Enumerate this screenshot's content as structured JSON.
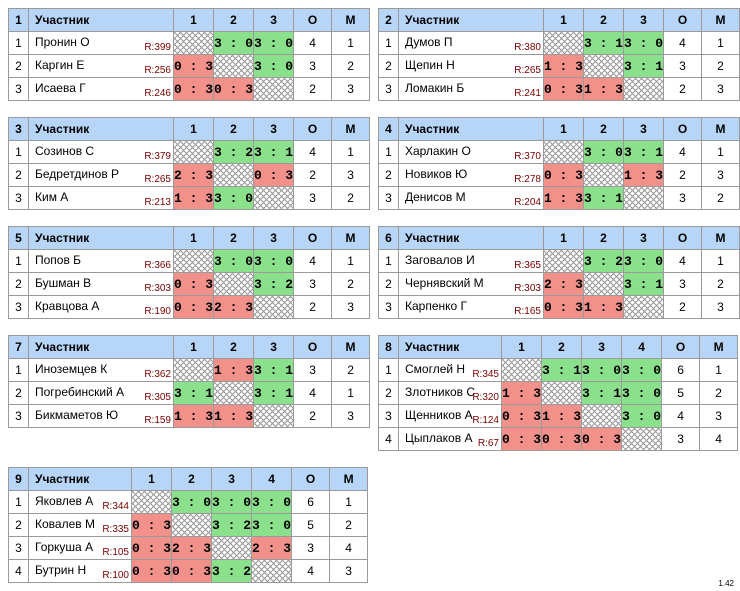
{
  "header_label": "Участник",
  "col_points": "О",
  "col_place": "М",
  "version": "1.42",
  "groups": [
    {
      "num": "1",
      "players": [
        {
          "name": "Пронин О",
          "rating": "R:399",
          "results": [
            "",
            "3 : 0",
            "3 : 0"
          ],
          "points": "4",
          "place": "1"
        },
        {
          "name": "Каргин Е",
          "rating": "R:256",
          "results": [
            "0 : 3",
            "",
            "3 : 0"
          ],
          "points": "3",
          "place": "2"
        },
        {
          "name": "Исаева Г",
          "rating": "R:246",
          "results": [
            "0 : 3",
            "0 : 3",
            ""
          ],
          "points": "2",
          "place": "3"
        }
      ]
    },
    {
      "num": "2",
      "players": [
        {
          "name": "Думов П",
          "rating": "R:380",
          "results": [
            "",
            "3 : 1",
            "3 : 0"
          ],
          "points": "4",
          "place": "1"
        },
        {
          "name": "Щепин Н",
          "rating": "R:265",
          "results": [
            "1 : 3",
            "",
            "3 : 1"
          ],
          "points": "3",
          "place": "2"
        },
        {
          "name": "Ломакин Б",
          "rating": "R:241",
          "results": [
            "0 : 3",
            "1 : 3",
            ""
          ],
          "points": "2",
          "place": "3"
        }
      ]
    },
    {
      "num": "3",
      "players": [
        {
          "name": "Созинов С",
          "rating": "R:379",
          "results": [
            "",
            "3 : 2",
            "3 : 1"
          ],
          "points": "4",
          "place": "1"
        },
        {
          "name": "Бедретдинов Р",
          "rating": "R:265",
          "results": [
            "2 : 3",
            "",
            "0 : 3"
          ],
          "points": "2",
          "place": "3"
        },
        {
          "name": "Ким А",
          "rating": "R:213",
          "results": [
            "1 : 3",
            "3 : 0",
            ""
          ],
          "points": "3",
          "place": "2"
        }
      ]
    },
    {
      "num": "4",
      "players": [
        {
          "name": "Харлакин О",
          "rating": "R:370",
          "results": [
            "",
            "3 : 0",
            "3 : 1"
          ],
          "points": "4",
          "place": "1"
        },
        {
          "name": "Новиков Ю",
          "rating": "R:278",
          "results": [
            "0 : 3",
            "",
            "1 : 3"
          ],
          "points": "2",
          "place": "3"
        },
        {
          "name": "Денисов М",
          "rating": "R:204",
          "results": [
            "1 : 3",
            "3 : 1",
            ""
          ],
          "points": "3",
          "place": "2"
        }
      ]
    },
    {
      "num": "5",
      "players": [
        {
          "name": "Попов Б",
          "rating": "R:366",
          "results": [
            "",
            "3 : 0",
            "3 : 0"
          ],
          "points": "4",
          "place": "1"
        },
        {
          "name": "Бушман В",
          "rating": "R:303",
          "results": [
            "0 : 3",
            "",
            "3 : 2"
          ],
          "points": "3",
          "place": "2"
        },
        {
          "name": "Кравцова А",
          "rating": "R:190",
          "results": [
            "0 : 3",
            "2 : 3",
            ""
          ],
          "points": "2",
          "place": "3"
        }
      ]
    },
    {
      "num": "6",
      "players": [
        {
          "name": "Заговалов И",
          "rating": "R:365",
          "results": [
            "",
            "3 : 2",
            "3 : 0"
          ],
          "points": "4",
          "place": "1"
        },
        {
          "name": "Чернявский М",
          "rating": "R:303",
          "results": [
            "2 : 3",
            "",
            "3 : 1"
          ],
          "points": "3",
          "place": "2"
        },
        {
          "name": "Карпенко Г",
          "rating": "R:165",
          "results": [
            "0 : 3",
            "1 : 3",
            ""
          ],
          "points": "2",
          "place": "3"
        }
      ]
    },
    {
      "num": "7",
      "players": [
        {
          "name": "Иноземцев К",
          "rating": "R:362",
          "results": [
            "",
            "1 : 3",
            "3 : 1"
          ],
          "points": "3",
          "place": "2"
        },
        {
          "name": "Погребинский А",
          "rating": "R:305",
          "results": [
            "3 : 1",
            "",
            "3 : 1"
          ],
          "points": "4",
          "place": "1"
        },
        {
          "name": "Бикмаметов Ю",
          "rating": "R:159",
          "results": [
            "1 : 3",
            "1 : 3",
            ""
          ],
          "points": "2",
          "place": "3"
        }
      ]
    },
    {
      "num": "8",
      "players": [
        {
          "name": "Смоглей Н",
          "rating": "R:345",
          "results": [
            "",
            "3 : 1",
            "3 : 0",
            "3 : 0"
          ],
          "points": "6",
          "place": "1"
        },
        {
          "name": "Злотников С",
          "rating": "R:320",
          "results": [
            "1 : 3",
            "",
            "3 : 1",
            "3 : 0"
          ],
          "points": "5",
          "place": "2"
        },
        {
          "name": "Щенников А",
          "rating": "R:124",
          "results": [
            "0 : 3",
            "1 : 3",
            "",
            "3 : 0"
          ],
          "points": "4",
          "place": "3"
        },
        {
          "name": "Цыплаков А",
          "rating": "R:67",
          "results": [
            "0 : 3",
            "0 : 3",
            "0 : 3",
            ""
          ],
          "points": "3",
          "place": "4"
        }
      ]
    },
    {
      "num": "9",
      "players": [
        {
          "name": "Яковлев А",
          "rating": "R:344",
          "results": [
            "",
            "3 : 0",
            "3 : 0",
            "3 : 0"
          ],
          "points": "6",
          "place": "1"
        },
        {
          "name": "Ковалев М",
          "rating": "R:335",
          "results": [
            "0 : 3",
            "",
            "3 : 2",
            "3 : 0"
          ],
          "points": "5",
          "place": "2"
        },
        {
          "name": "Горкуша А",
          "rating": "R:105",
          "results": [
            "0 : 3",
            "2 : 3",
            "",
            "2 : 3"
          ],
          "points": "3",
          "place": "4"
        },
        {
          "name": "Бутрин Н",
          "rating": "R:100",
          "results": [
            "0 : 3",
            "0 : 3",
            "3 : 2",
            ""
          ],
          "points": "4",
          "place": "3"
        }
      ]
    }
  ]
}
